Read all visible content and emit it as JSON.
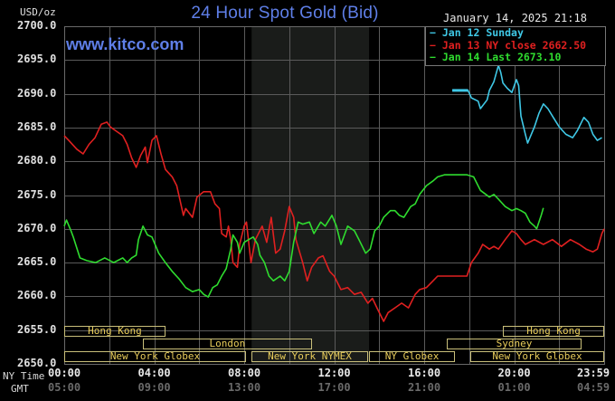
{
  "header": {
    "title": "24 Hour Spot Gold (Bid)",
    "site": "www.kitco.com",
    "unit": "USD/oz",
    "datetime": "January 14, 2025 21:18"
  },
  "legend": [
    {
      "label": "Jan 12 Sunday",
      "color": "#3fc8e6"
    },
    {
      "label": "Jan 13 NY close 2662.50",
      "color": "#e02020"
    },
    {
      "label": "Jan 14 Last 2673.10",
      "color": "#2fdc2f"
    }
  ],
  "axis": {
    "y_ticks": [
      "2700.0",
      "2695.0",
      "2690.0",
      "2685.0",
      "2680.0",
      "2675.0",
      "2670.0",
      "2665.0",
      "2660.0",
      "2655.0",
      "2650.0"
    ],
    "ny_time_label": "NY Time",
    "gmt_label": "GMT",
    "ny_ticks": [
      "00:00",
      "04:00",
      "08:00",
      "12:00",
      "16:00",
      "20:00",
      "23:59"
    ],
    "gmt_ticks": [
      "05:00",
      "09:00",
      "13:00",
      "17:00",
      "21:00",
      "01:00",
      "04:59"
    ]
  },
  "sessions": [
    {
      "label": "Hong Kong",
      "start": 0.0,
      "end": 4.5,
      "row": 0
    },
    {
      "label": "London",
      "start": 3.5,
      "end": 11.0,
      "row": 1
    },
    {
      "label": "New York Globex",
      "start": 0.0,
      "end": 8.08,
      "row": 2
    },
    {
      "label": "New York NYMEX",
      "start": 8.33,
      "end": 13.5,
      "row": 2
    },
    {
      "label": "NY Globex",
      "start": 13.55,
      "end": 17.37,
      "row": 2
    },
    {
      "label": "New York Globex",
      "start": 18.05,
      "end": 24.0,
      "row": 2
    },
    {
      "label": "Sydney",
      "start": 17.0,
      "end": 23.0,
      "row": 1
    },
    {
      "label": "Hong Kong",
      "start": 19.5,
      "end": 24.0,
      "row": 0
    }
  ],
  "chart_data": {
    "type": "line",
    "title": "24 Hour Spot Gold (Bid)",
    "xlabel": "NY Time (hours)",
    "ylabel": "USD/oz",
    "xlim": [
      0,
      24
    ],
    "ylim": [
      2650,
      2700
    ],
    "grid": true,
    "shaded_region": {
      "label": "New York NYMEX session",
      "start": 8.33,
      "end": 13.55
    },
    "legend_position": "top-right",
    "series": [
      {
        "name": "Jan 12 Sunday",
        "color": "#3fc8e6",
        "points": [
          [
            17.25,
            2690.5
          ],
          [
            17.95,
            2690.5
          ],
          [
            18.1,
            2689.4
          ],
          [
            18.4,
            2688.9
          ],
          [
            18.5,
            2687.8
          ],
          [
            18.8,
            2689.1
          ],
          [
            18.9,
            2690.5
          ],
          [
            19.1,
            2691.8
          ],
          [
            19.3,
            2694.2
          ],
          [
            19.4,
            2693.2
          ],
          [
            19.5,
            2691.6
          ],
          [
            19.7,
            2690.8
          ],
          [
            19.9,
            2690.2
          ],
          [
            20.1,
            2692.1
          ],
          [
            20.2,
            2691.2
          ],
          [
            20.3,
            2686.7
          ],
          [
            20.5,
            2684.0
          ],
          [
            20.6,
            2682.7
          ],
          [
            20.9,
            2685.1
          ],
          [
            21.1,
            2687.1
          ],
          [
            21.3,
            2688.5
          ],
          [
            21.5,
            2687.8
          ],
          [
            21.7,
            2686.7
          ],
          [
            22.0,
            2685.1
          ],
          [
            22.3,
            2684.0
          ],
          [
            22.6,
            2683.5
          ],
          [
            22.8,
            2684.5
          ],
          [
            23.1,
            2686.5
          ],
          [
            23.3,
            2685.8
          ],
          [
            23.5,
            2684.0
          ],
          [
            23.7,
            2683.1
          ],
          [
            23.9,
            2683.5
          ]
        ]
      },
      {
        "name": "Jan 13 NY close 2662.50",
        "color": "#e02020",
        "points": [
          [
            0,
            2683.8
          ],
          [
            0.2,
            2683.1
          ],
          [
            0.56,
            2681.8
          ],
          [
            0.84,
            2681.1
          ],
          [
            1.1,
            2682.5
          ],
          [
            1.37,
            2683.5
          ],
          [
            1.65,
            2685.5
          ],
          [
            1.9,
            2685.8
          ],
          [
            2.05,
            2685.1
          ],
          [
            2.3,
            2684.5
          ],
          [
            2.6,
            2683.8
          ],
          [
            2.8,
            2682.5
          ],
          [
            3.0,
            2680.5
          ],
          [
            3.2,
            2679.1
          ],
          [
            3.4,
            2680.9
          ],
          [
            3.6,
            2682.1
          ],
          [
            3.7,
            2679.8
          ],
          [
            3.9,
            2683.1
          ],
          [
            4.1,
            2683.8
          ],
          [
            4.3,
            2681.1
          ],
          [
            4.5,
            2678.8
          ],
          [
            4.8,
            2677.7
          ],
          [
            5.0,
            2676.4
          ],
          [
            5.3,
            2672.0
          ],
          [
            5.4,
            2673.0
          ],
          [
            5.7,
            2671.7
          ],
          [
            5.9,
            2674.7
          ],
          [
            6.2,
            2675.5
          ],
          [
            6.5,
            2675.5
          ],
          [
            6.7,
            2673.7
          ],
          [
            6.9,
            2673.0
          ],
          [
            7.0,
            2669.3
          ],
          [
            7.2,
            2668.8
          ],
          [
            7.3,
            2670.4
          ],
          [
            7.4,
            2668.4
          ],
          [
            7.5,
            2665.0
          ],
          [
            7.7,
            2664.3
          ],
          [
            7.8,
            2667.7
          ],
          [
            8.0,
            2670.4
          ],
          [
            8.1,
            2671.0
          ],
          [
            8.3,
            2665.0
          ],
          [
            8.5,
            2668.4
          ],
          [
            8.8,
            2670.4
          ],
          [
            9.0,
            2668.0
          ],
          [
            9.2,
            2671.7
          ],
          [
            9.4,
            2666.4
          ],
          [
            9.6,
            2667.0
          ],
          [
            9.8,
            2669.7
          ],
          [
            10.0,
            2673.3
          ],
          [
            10.2,
            2671.7
          ],
          [
            10.3,
            2668.4
          ],
          [
            10.6,
            2665.0
          ],
          [
            10.8,
            2662.3
          ],
          [
            11.0,
            2664.3
          ],
          [
            11.3,
            2665.7
          ],
          [
            11.5,
            2666.0
          ],
          [
            11.8,
            2663.7
          ],
          [
            12.0,
            2663.0
          ],
          [
            12.3,
            2661.0
          ],
          [
            12.6,
            2661.3
          ],
          [
            12.9,
            2660.3
          ],
          [
            13.2,
            2660.6
          ],
          [
            13.5,
            2659.0
          ],
          [
            13.7,
            2659.7
          ],
          [
            13.9,
            2658.3
          ],
          [
            14.2,
            2656.3
          ],
          [
            14.4,
            2657.6
          ],
          [
            14.7,
            2658.3
          ],
          [
            15.0,
            2659.0
          ],
          [
            15.3,
            2658.3
          ],
          [
            15.6,
            2660.3
          ],
          [
            15.8,
            2661.0
          ],
          [
            16.1,
            2661.3
          ],
          [
            16.4,
            2662.3
          ],
          [
            16.6,
            2663.0
          ],
          [
            16.9,
            2663.0
          ],
          [
            17.4,
            2663.0
          ],
          [
            17.9,
            2663.0
          ],
          [
            18.1,
            2665.0
          ],
          [
            18.4,
            2666.4
          ],
          [
            18.6,
            2667.7
          ],
          [
            18.9,
            2667.0
          ],
          [
            19.1,
            2667.4
          ],
          [
            19.3,
            2667.0
          ],
          [
            19.6,
            2668.4
          ],
          [
            19.9,
            2669.7
          ],
          [
            20.1,
            2669.3
          ],
          [
            20.3,
            2668.4
          ],
          [
            20.5,
            2667.7
          ],
          [
            20.9,
            2668.4
          ],
          [
            21.3,
            2667.7
          ],
          [
            21.7,
            2668.4
          ],
          [
            22.1,
            2667.4
          ],
          [
            22.5,
            2668.4
          ],
          [
            22.9,
            2667.7
          ],
          [
            23.2,
            2667.0
          ],
          [
            23.5,
            2666.6
          ],
          [
            23.7,
            2667.0
          ],
          [
            23.9,
            2669.3
          ],
          [
            24.0,
            2670.0
          ]
        ]
      },
      {
        "name": "Jan 14 Last 2673.10",
        "color": "#2fdc2f",
        "points": [
          [
            0,
            2670.4
          ],
          [
            0.1,
            2671.3
          ],
          [
            0.3,
            2669.7
          ],
          [
            0.4,
            2668.8
          ],
          [
            0.7,
            2665.7
          ],
          [
            1.0,
            2665.3
          ],
          [
            1.4,
            2665.0
          ],
          [
            1.8,
            2665.7
          ],
          [
            2.2,
            2665.0
          ],
          [
            2.6,
            2665.7
          ],
          [
            2.8,
            2665.0
          ],
          [
            3.0,
            2665.7
          ],
          [
            3.2,
            2666.1
          ],
          [
            3.3,
            2668.4
          ],
          [
            3.5,
            2670.4
          ],
          [
            3.7,
            2669.1
          ],
          [
            3.9,
            2668.8
          ],
          [
            4.2,
            2666.4
          ],
          [
            4.5,
            2665.0
          ],
          [
            4.8,
            2663.7
          ],
          [
            5.1,
            2662.6
          ],
          [
            5.4,
            2661.3
          ],
          [
            5.7,
            2660.7
          ],
          [
            6.0,
            2661.0
          ],
          [
            6.2,
            2660.3
          ],
          [
            6.4,
            2659.9
          ],
          [
            6.6,
            2661.3
          ],
          [
            6.8,
            2661.7
          ],
          [
            7.0,
            2663.0
          ],
          [
            7.2,
            2664.1
          ],
          [
            7.4,
            2667.0
          ],
          [
            7.5,
            2669.1
          ],
          [
            7.7,
            2668.0
          ],
          [
            7.8,
            2666.4
          ],
          [
            8.0,
            2668.0
          ],
          [
            8.2,
            2668.4
          ],
          [
            8.4,
            2668.8
          ],
          [
            8.6,
            2667.7
          ],
          [
            8.7,
            2666.1
          ],
          [
            8.9,
            2665.0
          ],
          [
            9.1,
            2663.0
          ],
          [
            9.3,
            2662.3
          ],
          [
            9.6,
            2663.0
          ],
          [
            9.8,
            2662.3
          ],
          [
            10.0,
            2663.7
          ],
          [
            10.2,
            2668.0
          ],
          [
            10.4,
            2671.0
          ],
          [
            10.6,
            2670.7
          ],
          [
            10.9,
            2671.0
          ],
          [
            11.1,
            2669.3
          ],
          [
            11.4,
            2671.0
          ],
          [
            11.6,
            2670.4
          ],
          [
            11.9,
            2672.0
          ],
          [
            12.1,
            2670.4
          ],
          [
            12.3,
            2667.7
          ],
          [
            12.6,
            2670.4
          ],
          [
            12.9,
            2669.7
          ],
          [
            13.1,
            2668.4
          ],
          [
            13.4,
            2666.4
          ],
          [
            13.6,
            2667.0
          ],
          [
            13.8,
            2669.7
          ],
          [
            14.0,
            2670.4
          ],
          [
            14.2,
            2671.7
          ],
          [
            14.5,
            2672.7
          ],
          [
            14.7,
            2672.7
          ],
          [
            14.9,
            2672.0
          ],
          [
            15.1,
            2671.7
          ],
          [
            15.4,
            2673.3
          ],
          [
            15.6,
            2673.7
          ],
          [
            15.8,
            2675.1
          ],
          [
            16.1,
            2676.4
          ],
          [
            16.4,
            2677.1
          ],
          [
            16.6,
            2677.7
          ],
          [
            16.9,
            2678.0
          ],
          [
            17.4,
            2678.0
          ],
          [
            17.9,
            2678.0
          ],
          [
            18.2,
            2677.7
          ],
          [
            18.5,
            2675.7
          ],
          [
            18.9,
            2674.7
          ],
          [
            19.1,
            2675.1
          ],
          [
            19.3,
            2674.4
          ],
          [
            19.6,
            2673.3
          ],
          [
            19.9,
            2672.7
          ],
          [
            20.1,
            2673.0
          ],
          [
            20.3,
            2672.7
          ],
          [
            20.5,
            2672.3
          ],
          [
            20.7,
            2671.0
          ],
          [
            20.9,
            2670.4
          ],
          [
            21.0,
            2670.0
          ],
          [
            21.2,
            2672.0
          ],
          [
            21.3,
            2673.1
          ]
        ]
      }
    ]
  }
}
